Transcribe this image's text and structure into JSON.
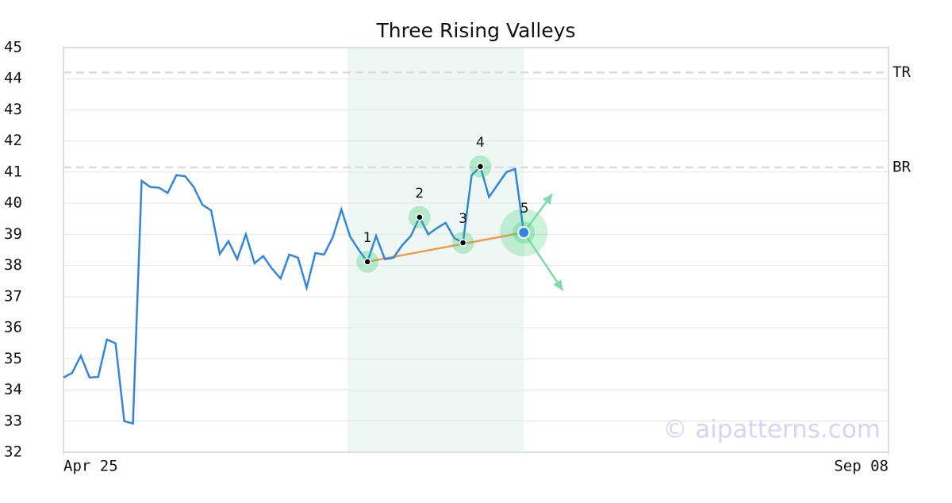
{
  "chart_data": {
    "type": "line",
    "title": "Three Rising Valleys",
    "xlim": [
      0,
      95
    ],
    "xticks": [
      {
        "value": 0,
        "label": "Apr 25"
      },
      {
        "value": 95,
        "label": "Sep 08"
      }
    ],
    "ylim": [
      32,
      45
    ],
    "yticks": [
      32,
      33,
      34,
      35,
      36,
      37,
      38,
      39,
      40,
      41,
      42,
      43,
      44,
      45
    ],
    "grid": true,
    "series": [
      {
        "color": "#2e86de",
        "x": [
          0,
          1,
          2,
          3,
          4,
          5,
          6,
          7,
          8,
          9,
          10,
          11,
          12,
          13,
          14,
          15,
          16,
          17,
          18,
          19,
          20,
          21,
          22,
          23,
          24,
          25,
          26,
          27,
          28,
          29,
          30,
          31,
          32,
          33,
          34,
          35,
          36,
          37,
          38,
          39,
          40,
          41,
          42,
          43,
          44,
          45,
          46,
          47,
          48,
          49,
          50,
          51,
          52,
          53
        ],
        "values": [
          34.4,
          34.55,
          35.1,
          34.4,
          34.42,
          35.62,
          35.5,
          33.0,
          32.92,
          40.72,
          40.52,
          40.5,
          40.33,
          40.9,
          40.87,
          40.52,
          39.95,
          39.77,
          38.37,
          38.78,
          38.2,
          39.0,
          38.07,
          38.3,
          37.9,
          37.58,
          38.35,
          38.25,
          37.28,
          38.4,
          38.35,
          38.9,
          39.8,
          38.93,
          38.5,
          38.12,
          38.95,
          38.2,
          38.25,
          38.65,
          38.95,
          39.55,
          39.0,
          39.2,
          39.37,
          38.88,
          38.73,
          40.9,
          41.18,
          40.2,
          40.6,
          41.0,
          41.1,
          39.06
        ]
      }
    ],
    "pattern_region": [
      32.7,
      53
    ],
    "pattern_points": {
      "labels": [
        "1",
        "2",
        "3",
        "4",
        "5"
      ],
      "x": [
        35,
        41,
        46,
        48,
        53
      ],
      "y": [
        38.12,
        39.55,
        38.73,
        41.18,
        39.06
      ],
      "color": "#2ecc71"
    },
    "trend_line": {
      "x": [
        35,
        53
      ],
      "y": [
        38.12,
        39.06
      ],
      "color": "#f39c4a"
    },
    "projections": {
      "x": [
        56.3,
        57.5
      ],
      "y": [
        40.3,
        37.2
      ],
      "color": "#7fd9a8"
    },
    "reference_lines": [
      {
        "label": "TR",
        "value": 44.2
      },
      {
        "label": "BR",
        "value": 41.15
      }
    ],
    "watermark": "© aipatterns.com"
  }
}
